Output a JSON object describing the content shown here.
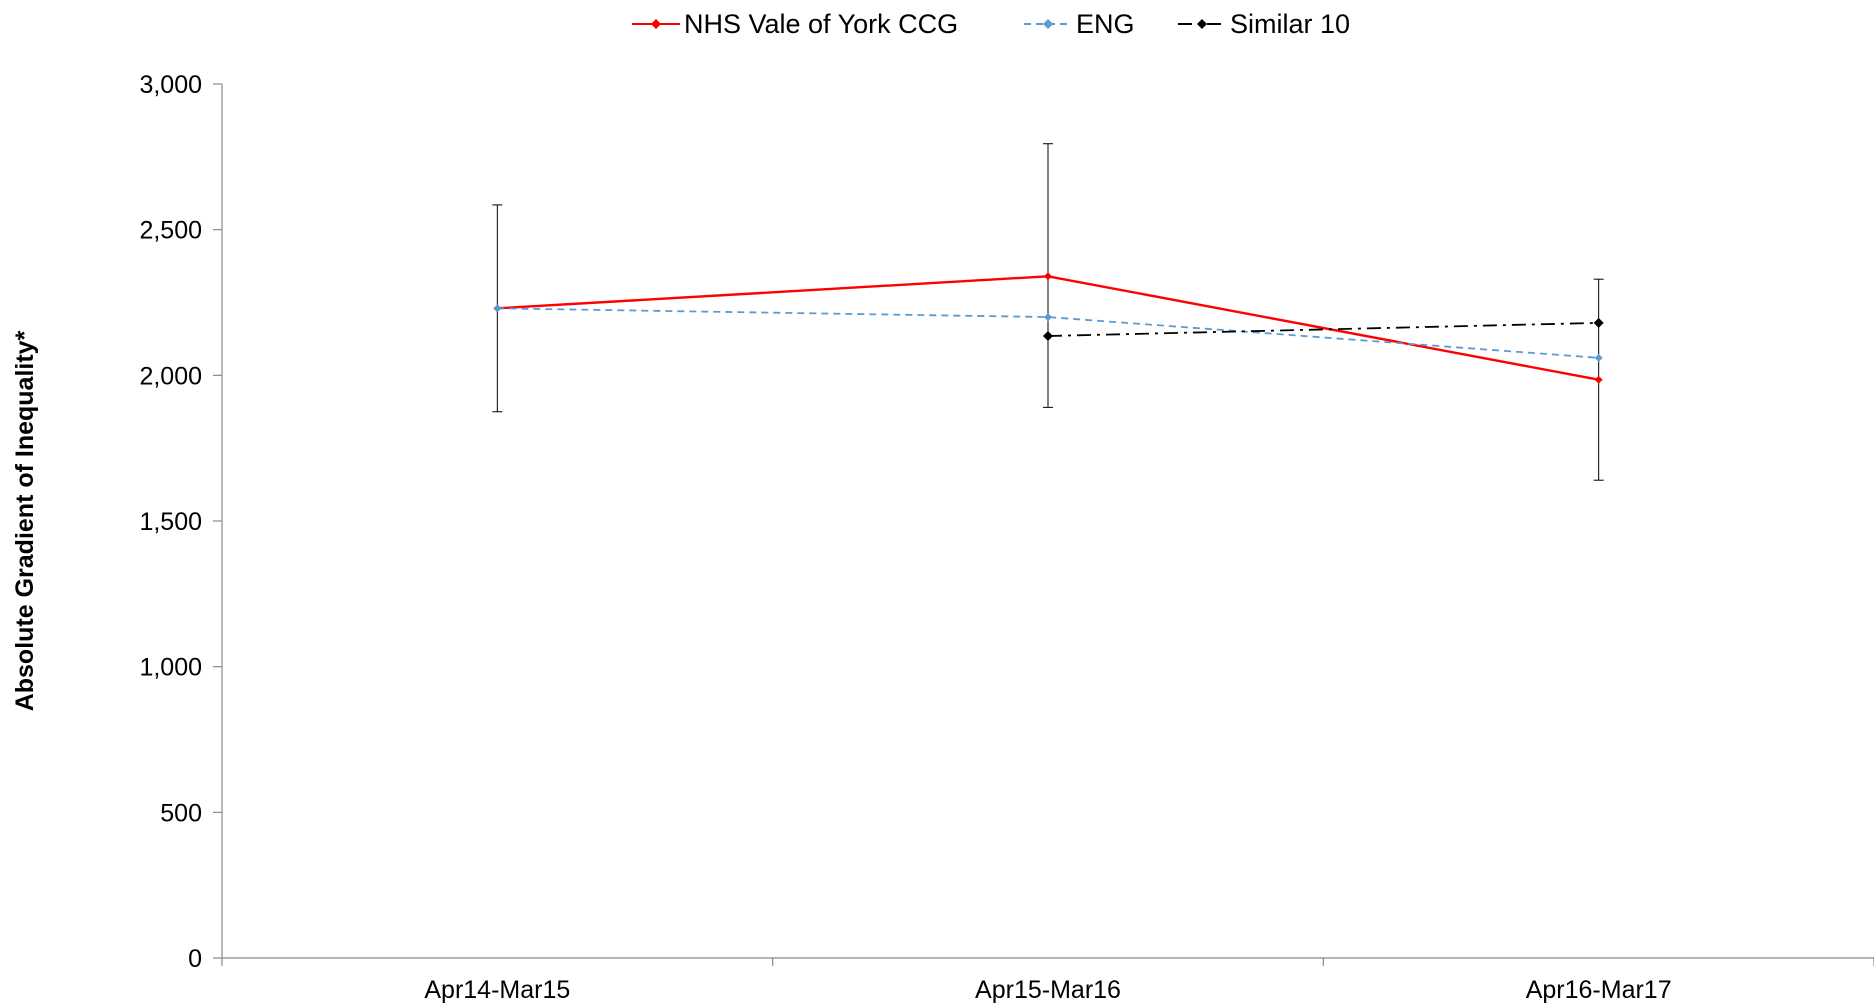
{
  "chart_data": {
    "type": "line",
    "title": "",
    "xlabel": "",
    "ylabel": "Absolute Gradient of Inequality*",
    "categories": [
      "Apr14-Mar15",
      "Apr15-Mar16",
      "Apr16-Mar17"
    ],
    "ylim": [
      0,
      3000
    ],
    "yticks": [
      0,
      500,
      1000,
      1500,
      2000,
      2500,
      3000
    ],
    "ytick_labels": [
      "0",
      "500",
      "1,000",
      "1,500",
      "2,000",
      "2,500",
      "3,000"
    ],
    "grid": false,
    "legend_position": "top",
    "series": [
      {
        "name": "NHS Vale of York CCG",
        "color": "#ff0000",
        "line_style": "solid",
        "values": [
          2230,
          2340,
          1985
        ],
        "error_upper": [
          2585,
          2795,
          2330
        ],
        "error_lower": [
          1875,
          1890,
          1640
        ]
      },
      {
        "name": "ENG",
        "color": "#5b9bd5",
        "line_style": "dashed",
        "values": [
          2230,
          2200,
          2060
        ]
      },
      {
        "name": "Similar 10",
        "color": "#000000",
        "line_style": "dash-dot",
        "values": [
          null,
          2135,
          2180
        ]
      }
    ]
  }
}
